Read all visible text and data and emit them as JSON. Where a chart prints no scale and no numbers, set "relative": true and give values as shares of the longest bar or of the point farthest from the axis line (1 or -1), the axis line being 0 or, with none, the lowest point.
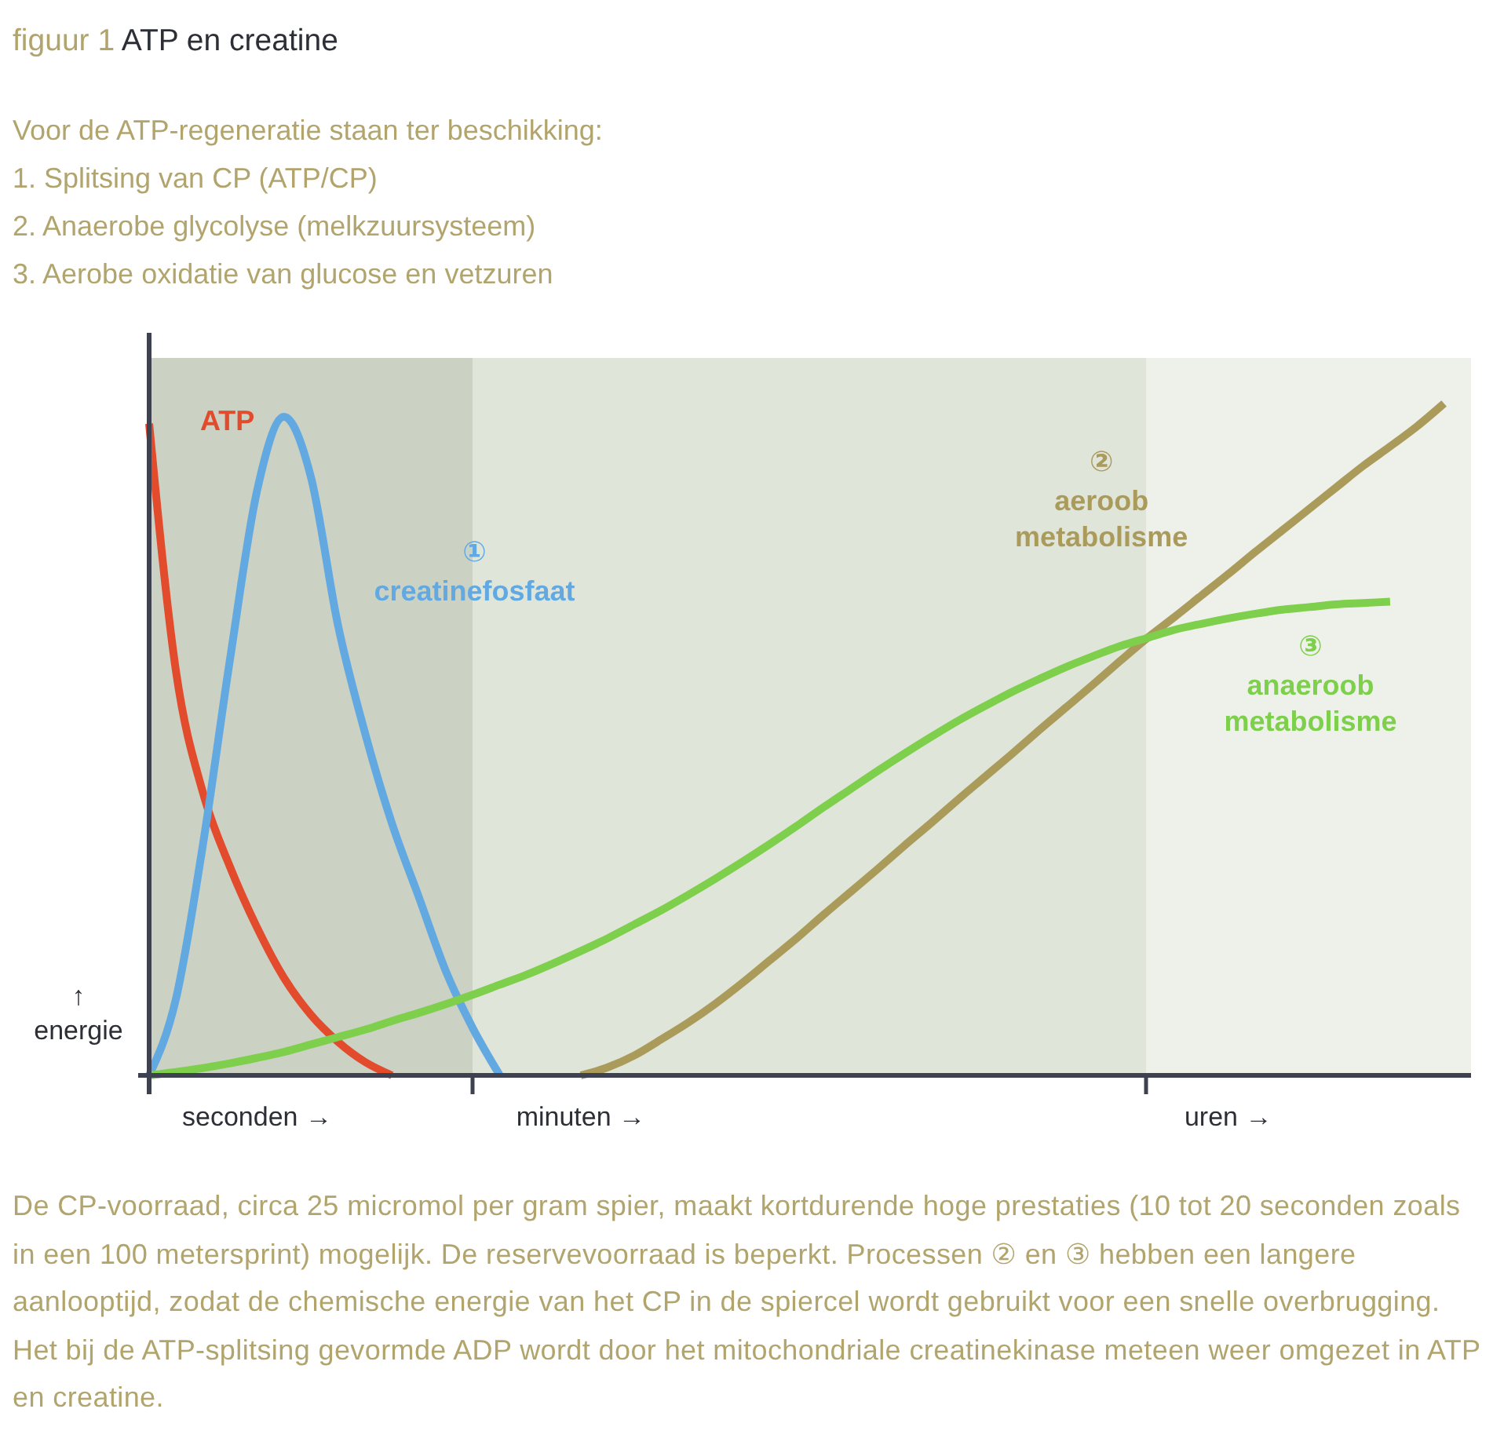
{
  "chart_data": {
    "type": "line",
    "title": "figuur 1 ATP en creatine",
    "subtitle": "Voor de ATP-regeneratie staan ter beschikking:\n1. Splitsing van CP (ATP/CP)\n2. Anaerobe glycolyse (melkzuursysteem)\n3. Aerobe oxidatie van glucose en vetzuren",
    "ylabel": "↑ energie",
    "relative": true,
    "line_style": "solid",
    "categories": [
      null,
      null,
      null,
      null,
      "seconden →",
      null,
      null,
      null,
      null,
      null,
      null,
      null,
      null,
      null,
      null,
      null,
      "minuten →",
      null,
      null,
      null,
      null,
      null,
      null,
      null,
      null,
      null,
      null,
      null,
      null,
      null,
      null,
      null,
      null,
      null,
      null,
      null,
      null,
      null,
      null,
      null,
      "uren →",
      null,
      null,
      null,
      null,
      null,
      null,
      null,
      null,
      null
    ],
    "series": [
      {
        "name": "ATP",
        "color": "#e24b2c",
        "values": [
          0.97,
          0.6,
          0.42,
          0.31,
          0.22,
          0.145,
          0.09,
          0.05,
          0.02,
          0,
          null,
          null,
          null,
          null,
          null,
          null,
          null,
          null,
          null,
          null,
          null,
          null,
          null,
          null,
          null,
          null,
          null,
          null,
          null,
          null,
          null,
          null,
          null,
          null,
          null,
          null,
          null,
          null,
          null,
          null,
          null,
          null,
          null,
          null,
          null,
          null,
          null,
          null,
          null,
          null
        ]
      },
      {
        "name": "① creatinefosfaat",
        "color": "#62a9e2",
        "values": [
          0,
          0.115,
          0.345,
          0.62,
          0.87,
          0.98,
          0.89,
          0.67,
          0.51,
          0.375,
          0.265,
          0.155,
          0.07,
          0,
          null,
          null,
          null,
          null,
          null,
          null,
          null,
          null,
          null,
          null,
          null,
          null,
          null,
          null,
          null,
          null,
          null,
          null,
          null,
          null,
          null,
          null,
          null,
          null,
          null,
          null,
          null,
          null,
          null,
          null,
          null,
          null,
          null,
          null,
          null,
          null
        ]
      },
      {
        "name": "② aeroob metabolisme",
        "color": "#ab9b5b",
        "values": [
          null,
          null,
          null,
          null,
          null,
          null,
          null,
          null,
          null,
          null,
          null,
          null,
          null,
          null,
          null,
          null,
          0,
          0.012,
          0.03,
          0.054,
          0.079,
          0.107,
          0.138,
          0.171,
          0.204,
          0.239,
          0.273,
          0.307,
          0.342,
          0.376,
          0.411,
          0.445,
          0.479,
          0.514,
          0.548,
          0.582,
          0.617,
          0.651,
          0.682,
          0.714,
          0.746,
          0.779,
          0.811,
          0.843,
          0.875,
          0.907,
          0.936,
          0.966,
          1,
          null
        ]
      },
      {
        "name": "③ anaeroob metabolisme",
        "color": "#7dcf4c",
        "values": [
          0,
          0.005,
          0.011,
          0.018,
          0.026,
          0.035,
          0.046,
          0.057,
          0.068,
          0.081,
          0.093,
          0.106,
          0.12,
          0.135,
          0.15,
          0.167,
          0.185,
          0.204,
          0.225,
          0.246,
          0.269,
          0.293,
          0.318,
          0.344,
          0.371,
          0.399,
          0.426,
          0.453,
          0.479,
          0.504,
          0.528,
          0.55,
          0.571,
          0.59,
          0.608,
          0.624,
          0.639,
          0.651,
          0.663,
          0.672,
          0.68,
          0.687,
          0.693,
          0.697,
          0.701,
          0.703,
          0.705,
          null,
          null,
          null
        ]
      }
    ],
    "annotations": [
      "De CP-voorraad, circa 25 micromol per gram spier, maakt kortdurende hoge prestaties (10 tot 20 seconden zoals in een 100 metersprint) mogelijk. De reservevoorraad is beperkt. Processen ② en ③ hebben een langere aanlooptijd, zodat de chemische energie van het CP in de spiercel wordt gebruikt voor een snelle overbrugging. Het bij de ATP-splitsing gevormde ADP wordt door het mitochondriale creatinekinase meteen weer omgezet in ATP en creatine."
    ]
  }
}
